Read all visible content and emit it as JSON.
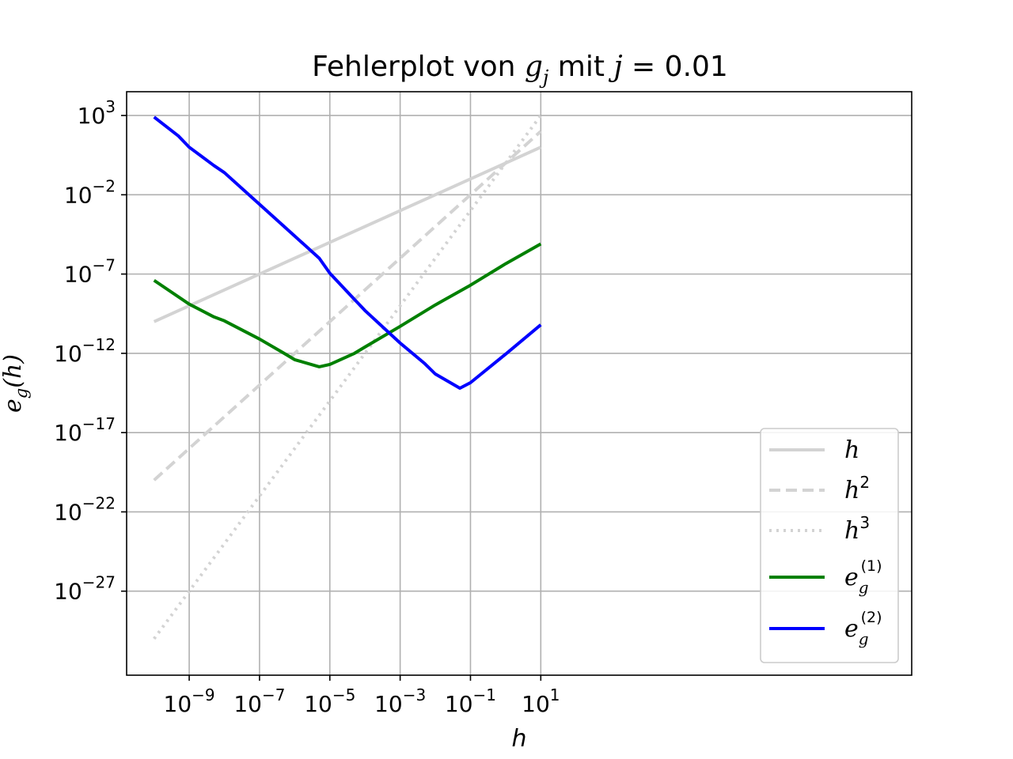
{
  "chart_data": {
    "type": "line",
    "title": {
      "prefix": "Fehlerplot von ",
      "g": "g",
      "g_sub": "j",
      "mid": " mit ",
      "j": "j",
      "eq": " = 0.01"
    },
    "xlabel": "h",
    "ylabel": {
      "e": "e",
      "sub": "g",
      "arg": "(h)"
    },
    "xscale": "log",
    "yscale": "log",
    "xlim_exp": [
      -10.78,
      11.55
    ],
    "ylim_exp": [
      -32.3,
      4.5
    ],
    "grid": true,
    "legend_position": "lower right",
    "x_ticks": [
      {
        "base": "10",
        "exp": "−9",
        "value_exp": -9
      },
      {
        "base": "10",
        "exp": "−7",
        "value_exp": -7
      },
      {
        "base": "10",
        "exp": "−5",
        "value_exp": -5
      },
      {
        "base": "10",
        "exp": "−3",
        "value_exp": -3
      },
      {
        "base": "10",
        "exp": "−1",
        "value_exp": -1
      },
      {
        "base": "10",
        "exp": "1",
        "value_exp": 1
      }
    ],
    "y_ticks": [
      {
        "base": "10",
        "exp": "3",
        "value_exp": 3
      },
      {
        "base": "10",
        "exp": "−2",
        "value_exp": -2
      },
      {
        "base": "10",
        "exp": "−7",
        "value_exp": -7
      },
      {
        "base": "10",
        "exp": "−12",
        "value_exp": -12
      },
      {
        "base": "10",
        "exp": "−17",
        "value_exp": -17
      },
      {
        "base": "10",
        "exp": "−22",
        "value_exp": -22
      },
      {
        "base": "10",
        "exp": "−27",
        "value_exp": -27
      }
    ],
    "series": [
      {
        "id": "h",
        "legend": {
          "base": "h",
          "sup": ""
        },
        "color": "#d3d3d3",
        "dash": "",
        "points_exp": [
          [
            -10,
            -10
          ],
          [
            1,
            1
          ]
        ]
      },
      {
        "id": "h2",
        "legend": {
          "base": "h",
          "sup": "2"
        },
        "color": "#d3d3d3",
        "dash": "14,7",
        "points_exp": [
          [
            -10,
            -20
          ],
          [
            1,
            2
          ]
        ]
      },
      {
        "id": "h3",
        "legend": {
          "base": "h",
          "sup": "3"
        },
        "color": "#d3d3d3",
        "dash": "3,6",
        "points_exp": [
          [
            -10,
            -30
          ],
          [
            1,
            3
          ]
        ]
      },
      {
        "id": "e1",
        "legend": {
          "base": "e",
          "sub": "g",
          "sup": "(1)"
        },
        "color": "#008000",
        "dash": "",
        "points_exp": [
          [
            -10,
            -7.4
          ],
          [
            -9,
            -8.9
          ],
          [
            -8.3,
            -9.7
          ],
          [
            -8,
            -9.95
          ],
          [
            -7,
            -11.1
          ],
          [
            -6.3,
            -12
          ],
          [
            -6,
            -12.4
          ],
          [
            -5.3,
            -12.85
          ],
          [
            -5,
            -12.7
          ],
          [
            -4.3,
            -12.0
          ],
          [
            -4,
            -11.6
          ],
          [
            -3,
            -10.3
          ],
          [
            -2,
            -8.95
          ],
          [
            -1,
            -7.7
          ],
          [
            0,
            -6.35
          ],
          [
            1,
            -5.1
          ]
        ]
      },
      {
        "id": "e2",
        "legend": {
          "base": "e",
          "sub": "g",
          "sup": "(2)"
        },
        "color": "#0000ff",
        "dash": "",
        "points_exp": [
          [
            -10,
            2.9
          ],
          [
            -9.3,
            1.7
          ],
          [
            -9,
            1.0
          ],
          [
            -8.3,
            -0.15
          ],
          [
            -8,
            -0.6
          ],
          [
            -7,
            -2.6
          ],
          [
            -6,
            -4.6
          ],
          [
            -5.3,
            -6.0
          ],
          [
            -5,
            -6.95
          ],
          [
            -4.3,
            -8.6
          ],
          [
            -4,
            -9.3
          ],
          [
            -3,
            -11.35
          ],
          [
            -2.3,
            -12.65
          ],
          [
            -2,
            -13.3
          ],
          [
            -1.3,
            -14.2
          ],
          [
            -1,
            -13.85
          ],
          [
            0,
            -12.05
          ],
          [
            1,
            -10.2
          ]
        ]
      }
    ]
  }
}
